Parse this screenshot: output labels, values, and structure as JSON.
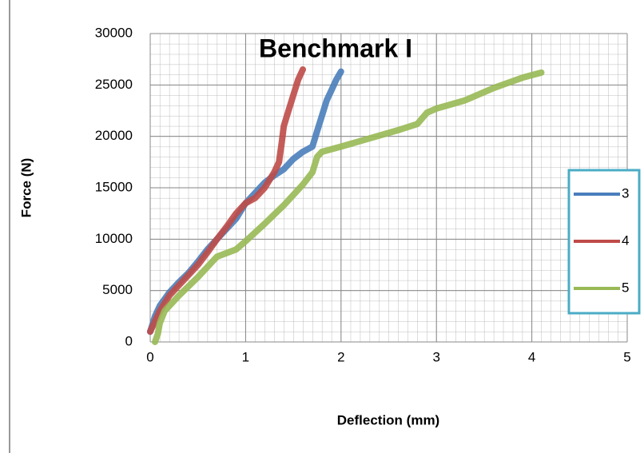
{
  "chart_data": {
    "type": "line",
    "title": "Benchmark I",
    "x_label": "Deflection (mm)",
    "y_label": "Force (N)",
    "xlim": [
      0,
      5
    ],
    "xticks": [
      0,
      1,
      2,
      3,
      4,
      5
    ],
    "ylim": [
      0,
      30000
    ],
    "yticks": [
      0,
      5000,
      10000,
      15000,
      20000,
      25000,
      30000
    ],
    "grid": true,
    "legend": "right",
    "series": [
      {
        "name": "3",
        "color": "#4a7ebb",
        "x": [
          0,
          0.05,
          0.1,
          0.2,
          0.3,
          0.4,
          0.5,
          0.6,
          0.7,
          0.8,
          0.9,
          1.0,
          1.1,
          1.2,
          1.3,
          1.4,
          1.5,
          1.6,
          1.7,
          1.75,
          1.8,
          1.85,
          1.9,
          1.95,
          2.0
        ],
        "values": [
          1000,
          2500,
          3500,
          4800,
          5800,
          6700,
          7800,
          9000,
          10000,
          11000,
          12000,
          13500,
          14500,
          15500,
          16200,
          16800,
          17800,
          18500,
          19000,
          20500,
          22000,
          23500,
          24500,
          25500,
          26300
        ]
      },
      {
        "name": "4",
        "color": "#be4b48",
        "x": [
          0,
          0.1,
          0.2,
          0.3,
          0.4,
          0.5,
          0.6,
          0.7,
          0.8,
          0.9,
          1.0,
          1.1,
          1.2,
          1.3,
          1.35,
          1.38,
          1.4,
          1.45,
          1.5,
          1.55,
          1.6
        ],
        "values": [
          1000,
          3000,
          4500,
          5500,
          6500,
          7500,
          8700,
          10000,
          11200,
          12500,
          13500,
          14000,
          15000,
          16500,
          17500,
          19500,
          21000,
          22500,
          24000,
          25500,
          26500
        ]
      },
      {
        "name": "5",
        "color": "#98b954",
        "x": [
          0.05,
          0.08,
          0.1,
          0.15,
          0.3,
          0.5,
          0.7,
          0.9,
          1.0,
          1.2,
          1.4,
          1.6,
          1.7,
          1.75,
          1.8,
          2.0,
          2.3,
          2.6,
          2.8,
          2.9,
          3.0,
          3.3,
          3.6,
          3.9,
          4.1
        ],
        "values": [
          0,
          800,
          1800,
          3000,
          4500,
          6300,
          8300,
          9000,
          9800,
          11500,
          13300,
          15300,
          16500,
          18000,
          18500,
          19000,
          19800,
          20600,
          21200,
          22300,
          22700,
          23500,
          24700,
          25700,
          26200
        ]
      }
    ]
  }
}
